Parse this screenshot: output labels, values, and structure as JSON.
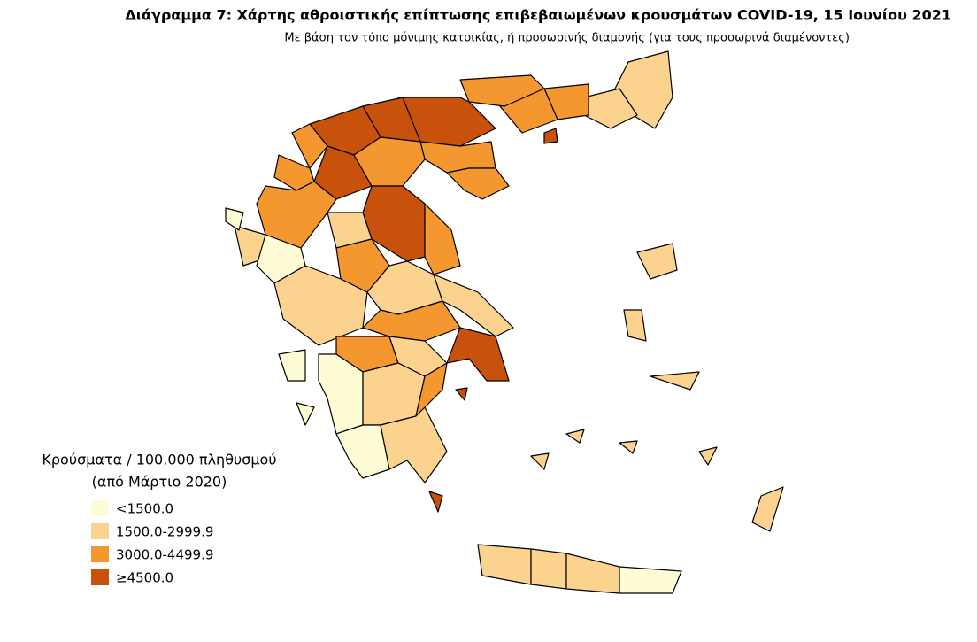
{
  "header": {
    "title": "Διάγραμμα 7: Χάρτης αθροιστικής επίπτωσης επιβεβαιωμένων κρουσμάτων COVID-19, 15 Ιουνίου 2021",
    "subtitle": "Με βάση τον τόπο μόνιμης κατοικίας, ή προσωρινής διαμονής (για τους προσωρινά διαμένοντες)"
  },
  "legend": {
    "title": [
      "Κρούσματα / 100.000 πληθυσμού",
      "(από Μάρτιο 2020)"
    ],
    "items": [
      {
        "label": "<1500.0",
        "color": "#fefcd4"
      },
      {
        "label": "1500.0-2999.9",
        "color": "#fbd38f"
      },
      {
        "label": "3000.0-4499.9",
        "color": "#f5972f"
      },
      {
        "label": "≥4500.0",
        "color": "#c8520c"
      }
    ]
  }
}
